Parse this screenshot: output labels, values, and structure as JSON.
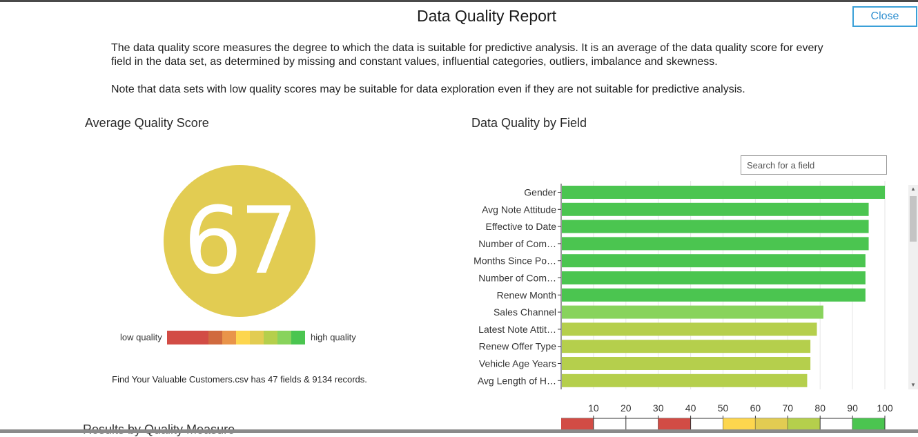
{
  "dialog": {
    "title": "Data Quality Report",
    "close_label": "Close",
    "description": [
      "The data quality score measures the degree to which the data is suitable for predictive analysis. It is an average of the data quality score for every field in the data set, as determined by missing and constant values, influential categories, outliers, imbalance and skewness.",
      "Note that data sets with low quality scores may be suitable for data exploration even if they are not suitable for predictive analysis."
    ]
  },
  "average": {
    "heading": "Average Quality Score",
    "score": "67",
    "score_color": "#e2cc52",
    "legend_low": "low quality",
    "legend_high": "high quality",
    "legend_colors": [
      "#d24c45",
      "#d24c45",
      "#d24c45",
      "#d06a3f",
      "#e9944a",
      "#fdd64e",
      "#e2cc52",
      "#b5cf4c",
      "#88d35c",
      "#4bc550"
    ],
    "records_text": "Find Your Valuable Customers.csv has 47 fields & 9134 records.",
    "next_section": "Results by Quality Measure"
  },
  "by_field": {
    "heading": "Data Quality by Field",
    "search_placeholder": "Search for a field"
  },
  "chart_data": {
    "type": "bar",
    "orientation": "horizontal",
    "categories": [
      "Gender",
      "Avg Note Attitude",
      "Effective to Date",
      "Number of Com…",
      "Months Since Po…",
      "Number of Com…",
      "Renew Month",
      "Sales Channel",
      "Latest Note Attit…",
      "Renew Offer Type",
      "Vehicle Age Years",
      "Avg Length of H…"
    ],
    "values": [
      100,
      95,
      95,
      95,
      94,
      94,
      94,
      81,
      79,
      77,
      77,
      76
    ],
    "bar_colors": [
      "#4bc550",
      "#4bc550",
      "#4bc550",
      "#4bc550",
      "#4bc550",
      "#4bc550",
      "#4bc550",
      "#88d35c",
      "#b5cf4c",
      "#b5cf4c",
      "#b5cf4c",
      "#b5cf4c"
    ],
    "xlim": [
      0,
      100
    ],
    "xticks": [
      10,
      20,
      30,
      40,
      50,
      60,
      70,
      80,
      90,
      100
    ],
    "grid": true,
    "band_colors": [
      "#d24c45",
      "#ffffff",
      "#ffffff",
      "#d24c45",
      "#ffffff",
      "#fdd64e",
      "#e2cc52",
      "#b5cf4c",
      "#ffffff",
      "#4bc550"
    ]
  }
}
